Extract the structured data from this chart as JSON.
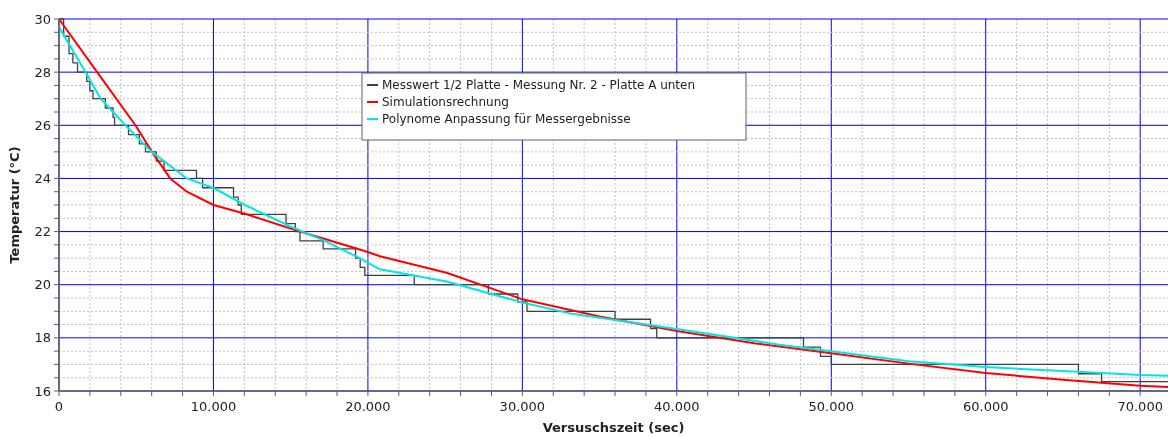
{
  "chart_data": {
    "type": "line",
    "xlabel": "Versuschszeit (sec)",
    "ylabel": "Temperatur (°C)",
    "xlim": [
      0,
      71800
    ],
    "ylim": [
      16,
      30
    ],
    "xticks": [
      0,
      {
        "value": 2000,
        "label": null
      },
      {
        "value": 4000,
        "label": null
      },
      {
        "value": 6000,
        "label": null
      },
      {
        "value": 8000,
        "label": null
      },
      {
        "value": 10000,
        "label": "10.000"
      },
      {
        "value": 12000,
        "label": null
      },
      {
        "value": 14000,
        "label": null
      },
      {
        "value": 16000,
        "label": null
      },
      {
        "value": 18000,
        "label": null
      },
      {
        "value": 20000,
        "label": "20.000"
      },
      {
        "value": 22000,
        "label": null
      },
      {
        "value": 24000,
        "label": null
      },
      {
        "value": 26000,
        "label": null
      },
      {
        "value": 28000,
        "label": null
      },
      {
        "value": 30000,
        "label": "30.000"
      },
      {
        "value": 32000,
        "label": null
      },
      {
        "value": 34000,
        "label": null
      },
      {
        "value": 36000,
        "label": null
      },
      {
        "value": 38000,
        "label": null
      },
      {
        "value": 40000,
        "label": "40.000"
      },
      {
        "value": 42000,
        "label": null
      },
      {
        "value": 44000,
        "label": null
      },
      {
        "value": 46000,
        "label": null
      },
      {
        "value": 48000,
        "label": null
      },
      {
        "value": 50000,
        "label": "50.000"
      },
      {
        "value": 52000,
        "label": null
      },
      {
        "value": 54000,
        "label": null
      },
      {
        "value": 56000,
        "label": null
      },
      {
        "value": 58000,
        "label": null
      },
      {
        "value": 60000,
        "label": "60.000"
      },
      {
        "value": 62000,
        "label": null
      },
      {
        "value": 64000,
        "label": null
      },
      {
        "value": 66000,
        "label": null
      },
      {
        "value": 68000,
        "label": null
      },
      {
        "value": 70000,
        "label": "70.000"
      }
    ],
    "yticks": [
      16,
      {
        "value": 16.5,
        "label": null
      },
      {
        "value": 17,
        "label": null
      },
      {
        "value": 17.5,
        "label": null
      },
      18,
      {
        "value": 18.5,
        "label": null
      },
      {
        "value": 19,
        "label": null
      },
      {
        "value": 19.5,
        "label": null
      },
      20,
      {
        "value": 20.5,
        "label": null
      },
      {
        "value": 21,
        "label": null
      },
      {
        "value": 21.5,
        "label": null
      },
      22,
      {
        "value": 22.5,
        "label": null
      },
      {
        "value": 23,
        "label": null
      },
      {
        "value": 23.5,
        "label": null
      },
      24,
      {
        "value": 24.5,
        "label": null
      },
      {
        "value": 25,
        "label": null
      },
      {
        "value": 25.5,
        "label": null
      },
      26,
      {
        "value": 26.5,
        "label": null
      },
      {
        "value": 27,
        "label": null
      },
      {
        "value": 27.5,
        "label": null
      },
      28,
      {
        "value": 28.5,
        "label": null
      },
      {
        "value": 29,
        "label": null
      },
      {
        "value": 29.5,
        "label": null
      },
      30
    ],
    "grid": true,
    "legend": "top",
    "series": [
      {
        "name": "Messwert 1/2 Platte - Messung Nr. 2 - Platte A unten",
        "type": "step",
        "color": "#404040",
        "x": [
          0,
          300,
          650,
          900,
          1200,
          1800,
          2000,
          2200,
          3000,
          3500,
          3600,
          4500,
          5200,
          5600,
          6300,
          6800,
          8900,
          9300,
          11300,
          11600,
          11800,
          14700,
          15300,
          15600,
          17100,
          19200,
          19500,
          19800,
          23000,
          27800,
          29700,
          30300,
          36000,
          38300,
          38700,
          48200,
          49300,
          50000,
          66000,
          67500,
          71800
        ],
        "values": [
          30,
          29.35,
          28.7,
          28.35,
          28.0,
          27.65,
          27.3,
          27.0,
          26.65,
          26.3,
          26.0,
          25.65,
          25.3,
          25.0,
          24.65,
          24.3,
          24.0,
          23.65,
          23.3,
          23.0,
          22.65,
          22.3,
          22.0,
          21.65,
          21.35,
          21.0,
          20.65,
          20.35,
          20.0,
          19.65,
          19.35,
          19.0,
          18.7,
          18.35,
          18.0,
          17.65,
          17.3,
          17.0,
          16.65,
          16.35,
          16.35
        ]
      },
      {
        "name": "Simulationsrechnung",
        "type": "line",
        "color": "#ff0000",
        "x": [
          0,
          2470,
          4950,
          6020,
          7200,
          8280,
          10000,
          12150,
          15600,
          19900,
          20780,
          25090,
          27800,
          30000,
          35000,
          40000,
          45000,
          50000,
          55000,
          60000,
          65000,
          70000,
          71800
        ],
        "values": [
          30,
          28,
          26,
          25,
          24,
          23.5,
          23,
          22.65,
          22,
          21.25,
          21.07,
          20.45,
          19.9,
          19.45,
          18.8,
          18.26,
          17.8,
          17.42,
          17.03,
          16.68,
          16.42,
          16.2,
          16.15
        ]
      },
      {
        "name": "Polynome Anpassung für Messergebnisse",
        "type": "line",
        "color": "#00e5e5",
        "x": [
          0,
          1720,
          2700,
          4300,
          6000,
          8280,
          10000,
          12040,
          14950,
          17200,
          19460,
          20780,
          25090,
          30000,
          33000,
          40000,
          46660,
          50000,
          55000,
          60000,
          65000,
          70000,
          71800
        ],
        "values": [
          29.7,
          28,
          27,
          26,
          25,
          24,
          23.64,
          23,
          22.2,
          21.65,
          21,
          20.58,
          20.12,
          19.33,
          18.93,
          18.33,
          17.74,
          17.5,
          17.12,
          16.9,
          16.75,
          16.6,
          16.57
        ]
      }
    ]
  }
}
